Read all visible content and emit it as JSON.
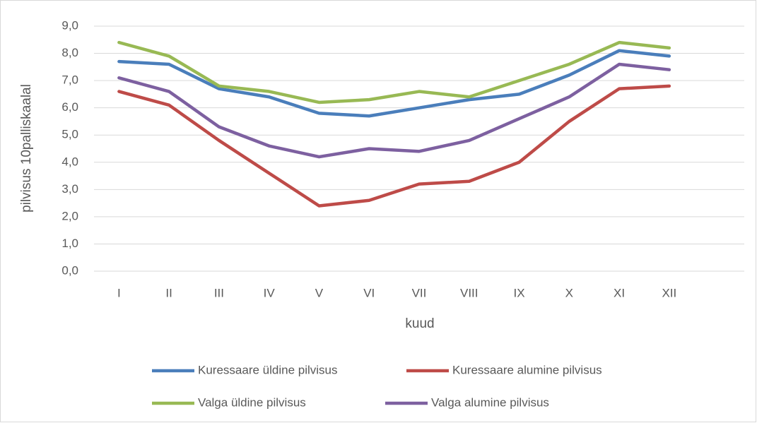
{
  "chart_data": {
    "type": "line",
    "y_label": "pilvisus 10palliskaalal",
    "x_label": "kuud",
    "categories": [
      "I",
      "II",
      "III",
      "IV",
      "V",
      "VI",
      "VII",
      "VIII",
      "IX",
      "X",
      "XI",
      "XII",
      null
    ],
    "series": [
      {
        "name": "Kuressaare üldine pilvisus",
        "color": "#4a7ebb",
        "values": [
          7.7,
          7.6,
          6.7,
          6.4,
          5.8,
          5.7,
          6.0,
          6.3,
          6.5,
          7.2,
          8.1,
          7.9,
          null
        ]
      },
      {
        "name": "Kuressaare alumine pilvisus",
        "color": "#be4b48",
        "values": [
          6.6,
          6.1,
          4.8,
          3.6,
          2.4,
          2.6,
          3.2,
          3.3,
          4.0,
          5.5,
          6.7,
          6.8,
          null
        ]
      },
      {
        "name": "Valga üldine pilvisus",
        "color": "#98b954",
        "values": [
          8.4,
          7.9,
          6.8,
          6.6,
          6.2,
          6.3,
          6.6,
          6.4,
          7.0,
          7.6,
          8.4,
          8.2,
          null
        ]
      },
      {
        "name": "Valga alumine pilvisus",
        "color": "#7d60a0",
        "values": [
          7.1,
          6.6,
          5.3,
          4.6,
          4.2,
          4.5,
          4.4,
          4.8,
          5.6,
          6.4,
          7.6,
          7.4,
          null
        ]
      }
    ],
    "ylim": [
      0,
      9
    ],
    "yticks": [
      {
        "value": 0,
        "label": "0,0"
      },
      {
        "value": 1,
        "label": "1,0"
      },
      {
        "value": 2,
        "label": "2,0"
      },
      {
        "value": 3,
        "label": "3,0"
      },
      {
        "value": 4,
        "label": "4,0"
      },
      {
        "value": 5,
        "label": "5,0"
      },
      {
        "value": 6,
        "label": "6,0"
      },
      {
        "value": 7,
        "label": "7,0"
      },
      {
        "value": 8,
        "label": "8,0"
      },
      {
        "value": 9,
        "label": "9,0"
      }
    ],
    "grid": true,
    "legend": "bottom"
  }
}
